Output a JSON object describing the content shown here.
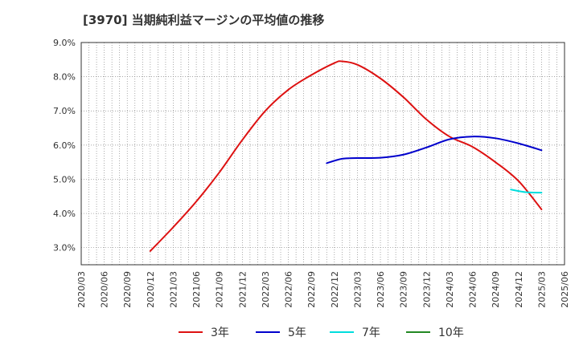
{
  "chart_data": {
    "type": "line",
    "title": "[3970]  当期純利益マージンの平均値の推移",
    "xlabel": "",
    "ylabel": "",
    "x_ticks": [
      "2020/03",
      "2020/06",
      "2020/09",
      "2020/12",
      "2021/03",
      "2021/06",
      "2021/09",
      "2021/12",
      "2022/03",
      "2022/06",
      "2022/09",
      "2022/12",
      "2023/03",
      "2023/06",
      "2023/09",
      "2023/12",
      "2024/03",
      "2024/06",
      "2024/09",
      "2024/12",
      "2025/03",
      "2025/06"
    ],
    "y_ticks": [
      "3.0%",
      "4.0%",
      "5.0%",
      "6.0%",
      "7.0%",
      "8.0%",
      "9.0%"
    ],
    "ylim": [
      2.5,
      9.0
    ],
    "grid": true,
    "legend_position": "bottom",
    "series": [
      {
        "name": "3年",
        "color": "#dd1111",
        "points": [
          [
            "2020/12",
            2.9
          ],
          [
            "2021/03",
            3.6
          ],
          [
            "2021/06",
            4.35
          ],
          [
            "2021/09",
            5.2
          ],
          [
            "2021/12",
            6.15
          ],
          [
            "2022/03",
            7.0
          ],
          [
            "2022/06",
            7.62
          ],
          [
            "2022/09",
            8.05
          ],
          [
            "2022/12",
            8.4
          ],
          [
            "2023/01",
            8.45
          ],
          [
            "2023/03",
            8.35
          ],
          [
            "2023/06",
            7.95
          ],
          [
            "2023/09",
            7.4
          ],
          [
            "2023/12",
            6.75
          ],
          [
            "2024/03",
            6.25
          ],
          [
            "2024/06",
            5.95
          ],
          [
            "2024/09",
            5.5
          ],
          [
            "2024/12",
            4.95
          ],
          [
            "2025/03",
            4.12
          ]
        ]
      },
      {
        "name": "5年",
        "color": "#0000cc",
        "points": [
          [
            "2022/11",
            5.47
          ],
          [
            "2023/01",
            5.6
          ],
          [
            "2023/03",
            5.62
          ],
          [
            "2023/06",
            5.63
          ],
          [
            "2023/09",
            5.72
          ],
          [
            "2023/12",
            5.93
          ],
          [
            "2024/03",
            6.17
          ],
          [
            "2024/06",
            6.25
          ],
          [
            "2024/09",
            6.2
          ],
          [
            "2024/12",
            6.05
          ],
          [
            "2025/03",
            5.85
          ]
        ]
      },
      {
        "name": "7年",
        "color": "#00dddd",
        "points": [
          [
            "2024/11",
            4.7
          ],
          [
            "2025/01",
            4.62
          ],
          [
            "2025/03",
            4.61
          ]
        ]
      },
      {
        "name": "10年",
        "color": "#228822",
        "points": []
      }
    ]
  }
}
